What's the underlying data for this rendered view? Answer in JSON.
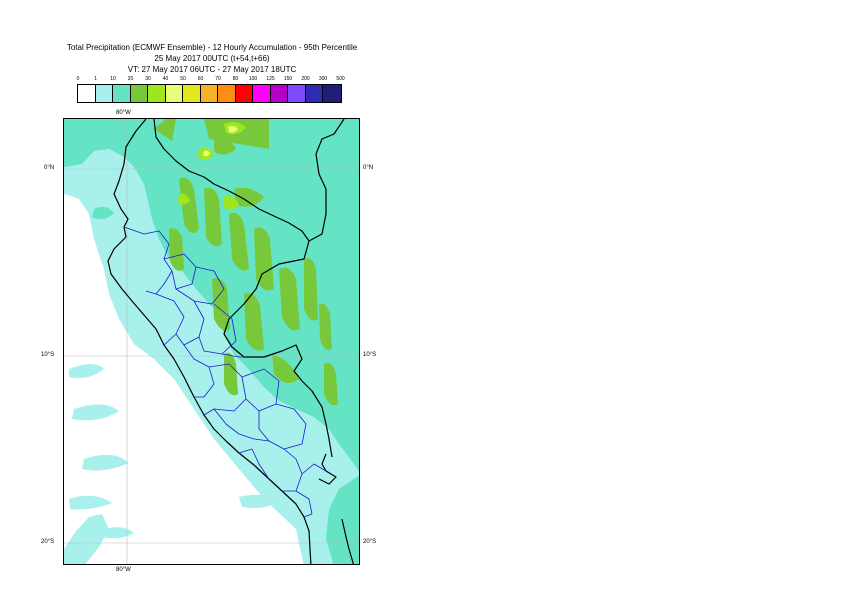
{
  "title": {
    "line1": "Total Precipitation (ECMWF Ensemble) - 12 Hourly Accumulation - 95th Percentile",
    "line2": "25 May 2017 00UTC (t+54,t+66)",
    "line3": "VT: 27 May 2017 06UTC - 27 May 2017 18UTC"
  },
  "legend": {
    "ticks": [
      "0",
      "1",
      "10",
      "20",
      "30",
      "40",
      "50",
      "60",
      "70",
      "80",
      "100",
      "125",
      "150",
      "200",
      "300",
      "500"
    ],
    "colors": [
      "#ffffff",
      "#a8f0ec",
      "#64e4c4",
      "#78c83c",
      "#a0e61e",
      "#e6ff78",
      "#e6e61e",
      "#f5b428",
      "#ff8c14",
      "#ff0000",
      "#ff00ff",
      "#b400c8",
      "#7d4bff",
      "#2d2db4",
      "#1e1e78"
    ]
  },
  "axes": {
    "lon_top": "80°W",
    "lon_bottom": "80°W",
    "lat_left": [
      "0°N",
      "10°S",
      "20°S"
    ],
    "lat_right": [
      "0°N",
      "10°S",
      "20°S"
    ]
  }
}
